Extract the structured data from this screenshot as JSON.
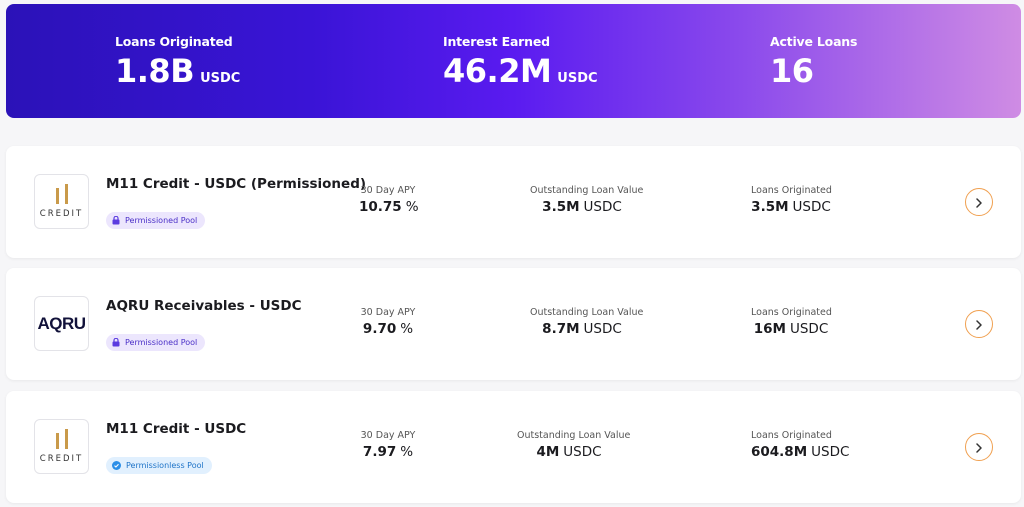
{
  "summary": {
    "loans_originated": {
      "label": "Loans Originated",
      "value": "1.8B",
      "unit": "USDC"
    },
    "interest_earned": {
      "label": "Interest Earned",
      "value": "46.2M",
      "unit": "USDC"
    },
    "active_loans": {
      "label": "Active Loans",
      "value": "16"
    }
  },
  "colors": {
    "accent": "#3a14d6",
    "arrow": "#f0a050",
    "permissioned_badge": "#ece6fd",
    "permissionless_badge": "#e1f0fe"
  },
  "pools": [
    {
      "name": "M11 Credit - USDC (Permissioned)",
      "logo_text": "CREDIT",
      "badge": "Permissioned Pool",
      "badge_icon": "lock-icon",
      "apy_label": "30 Day APY",
      "apy": "10.75",
      "apy_unit": "%",
      "outstanding_label": "Outstanding Loan Value",
      "outstanding": "3.5M",
      "outstanding_unit": "USDC",
      "originated_label": "Loans Originated",
      "originated": "3.5M",
      "originated_unit": "USDC"
    },
    {
      "name": "AQRU Receivables - USDC",
      "logo_text": "AQRU",
      "badge": "Permissioned Pool",
      "badge_icon": "lock-icon",
      "apy_label": "30 Day APY",
      "apy": "9.70",
      "apy_unit": "%",
      "outstanding_label": "Outstanding Loan Value",
      "outstanding": "8.7M",
      "outstanding_unit": "USDC",
      "originated_label": "Loans Originated",
      "originated": "16M",
      "originated_unit": "USDC"
    },
    {
      "name": "M11 Credit - USDC",
      "logo_text": "CREDIT",
      "badge": "Permissionless Pool",
      "badge_icon": "check-circle-icon",
      "apy_label": "30 Day APY",
      "apy": "7.97",
      "apy_unit": "%",
      "outstanding_label": "Outstanding Loan Value",
      "outstanding": "4M",
      "outstanding_unit": "USDC",
      "originated_label": "Loans Originated",
      "originated": "604.8M",
      "originated_unit": "USDC"
    }
  ]
}
